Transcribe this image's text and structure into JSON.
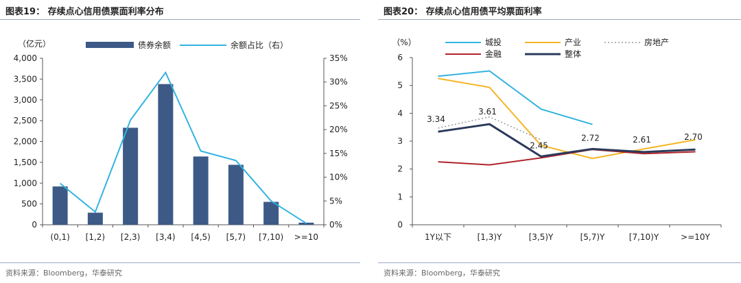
{
  "figure_left": {
    "title": "图表19：  存续点心信用债票面利率分布",
    "source": "资料来源：Bloomberg，华泰研究"
  },
  "figure_right": {
    "title": "图表20：  存续点心信用债平均票面利率",
    "source": "资料来源：Bloomberg，华泰研究"
  },
  "chart_data": [
    {
      "type": "bar",
      "categories": [
        "(0,1)",
        "[1,2)",
        "[2,3)",
        "[3,4)",
        "[4,5)",
        "[5,7)",
        "[7,10)",
        ">=10"
      ],
      "ylabel": "（亿元）",
      "ylim": [
        0,
        4000
      ],
      "yticks": [
        "0",
        "500",
        "1,000",
        "1,500",
        "2,000",
        "2,500",
        "3,000",
        "3,500",
        "4,000"
      ],
      "y2lim": [
        0,
        35
      ],
      "y2ticks": [
        "0%",
        "5%",
        "10%",
        "15%",
        "20%",
        "25%",
        "30%",
        "35%"
      ],
      "legend_position": "top",
      "series": [
        {
          "name": "债券余额",
          "kind": "bar",
          "axis": "left",
          "color": "#3d5a87",
          "values": [
            920,
            290,
            2330,
            3380,
            1640,
            1440,
            550,
            50
          ]
        },
        {
          "name": "余额占比（右）",
          "kind": "line",
          "axis": "right",
          "color": "#33b3e0",
          "values": [
            8.7,
            2.7,
            22.0,
            32.0,
            15.5,
            13.5,
            5.0,
            0.3
          ]
        }
      ]
    },
    {
      "type": "line",
      "categories": [
        "1Y以下",
        "[1,3)Y",
        "[3,5)Y",
        "[5,7)Y",
        "[7,10)Y",
        ">=10Y"
      ],
      "ylabel": "（%）",
      "ylim": [
        0,
        6
      ],
      "yticks": [
        "0",
        "1",
        "2",
        "3",
        "4",
        "5",
        "6"
      ],
      "legend_position": "top",
      "series": [
        {
          "name": "城投",
          "color": "#33b3e0",
          "dash": false,
          "values": [
            5.33,
            5.52,
            4.15,
            3.6,
            null,
            null
          ]
        },
        {
          "name": "产业",
          "color": "#f5b523",
          "dash": false,
          "values": [
            5.25,
            4.93,
            2.85,
            2.38,
            2.72,
            3.05
          ]
        },
        {
          "name": "房地产",
          "color": "#999999",
          "dash": true,
          "values": [
            3.47,
            3.87,
            3.05,
            null,
            null,
            null
          ]
        },
        {
          "name": "金融",
          "color": "#b0222a",
          "dash": false,
          "values": [
            2.26,
            2.15,
            2.4,
            2.7,
            2.55,
            2.62
          ]
        },
        {
          "name": "整体",
          "color": "#2b3a5a",
          "dash": false,
          "values": [
            3.34,
            3.61,
            2.45,
            2.72,
            2.61,
            2.7
          ]
        }
      ],
      "data_labels": [
        "3.34",
        "3.61",
        "2.45",
        "2.72",
        "2.61",
        "2.70"
      ]
    }
  ]
}
